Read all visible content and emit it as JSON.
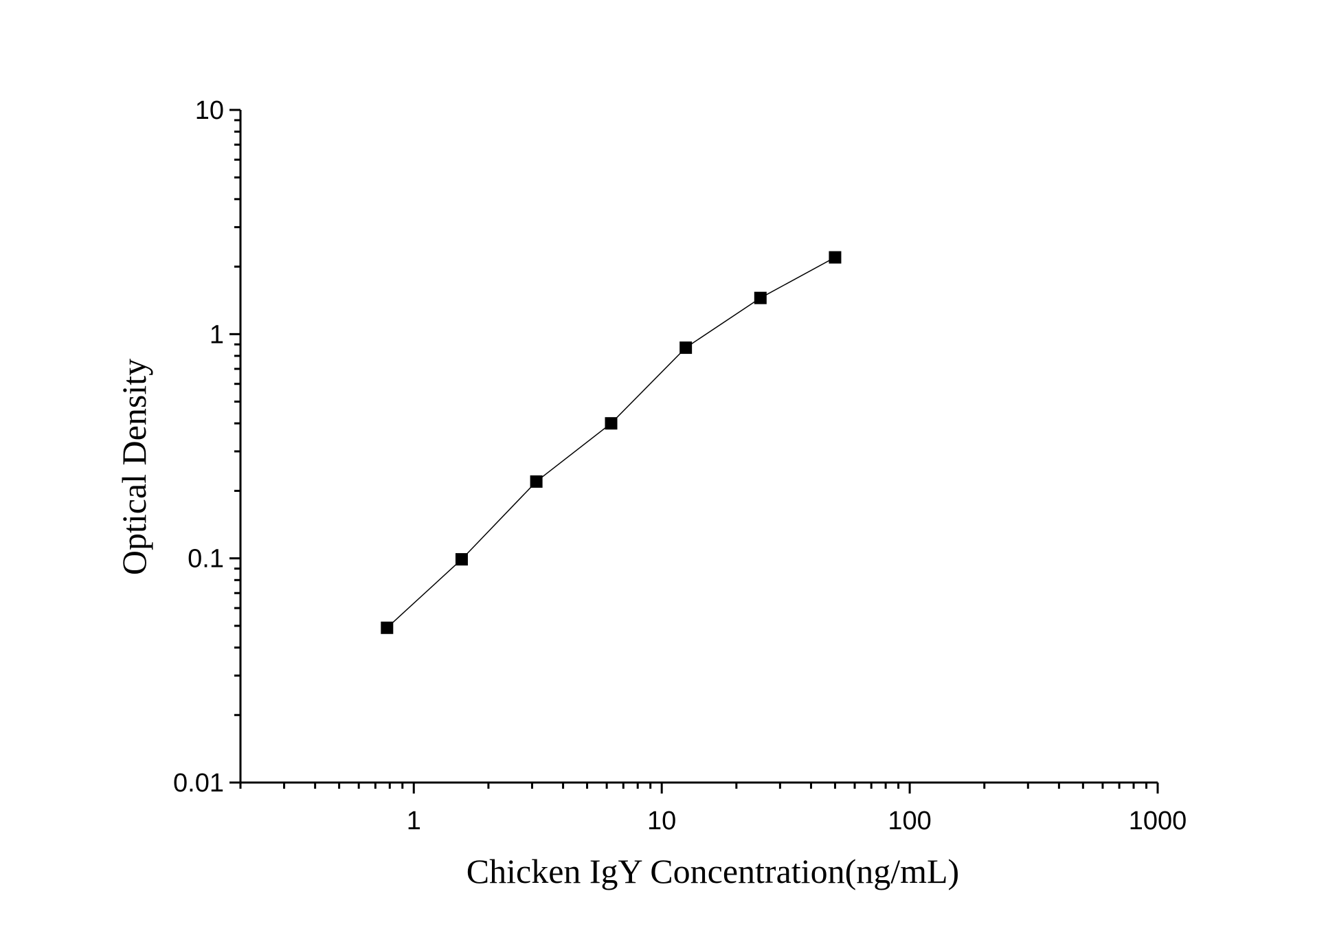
{
  "chart_data": {
    "type": "scatter",
    "title": "",
    "xlabel": "Chicken IgY Concentration(ng/mL)",
    "ylabel": "Optical Density",
    "xscale": "log",
    "yscale": "log",
    "xlim": [
      0.2,
      1000
    ],
    "ylim": [
      0.01,
      10
    ],
    "x_tick_labels": [
      "1",
      "10",
      "100",
      "1000"
    ],
    "y_tick_labels": [
      "0.01",
      "0.1",
      "1",
      "10"
    ],
    "grid": false,
    "marker": "square",
    "connected": true,
    "series": [
      {
        "x": [
          0.78,
          1.56,
          3.12,
          6.25,
          12.5,
          25,
          50
        ],
        "y": [
          0.049,
          0.099,
          0.22,
          0.4,
          0.87,
          1.45,
          2.2
        ]
      }
    ],
    "colors": {
      "line": "#000000",
      "marker": "#000000",
      "axis": "#000000"
    }
  }
}
